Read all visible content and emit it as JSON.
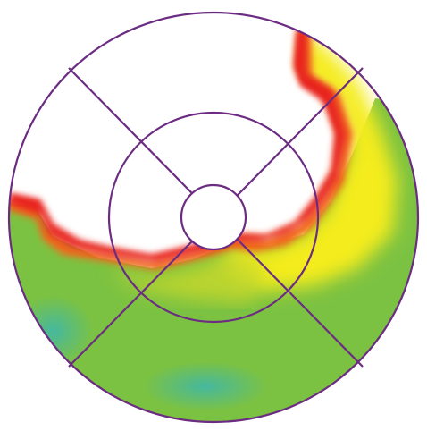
{
  "diagram": {
    "type": "polar-bullseye-map",
    "rings": 3,
    "sectors": 4,
    "colors": {
      "ring_stroke": "#6b2c82",
      "background": "#ffffff",
      "red": "#e8231a",
      "orange": "#f26b1d",
      "yellow": "#f4ec1a",
      "yellow_green": "#c9d92a",
      "green": "#7cc242",
      "teal": "#3fb7a9"
    }
  }
}
